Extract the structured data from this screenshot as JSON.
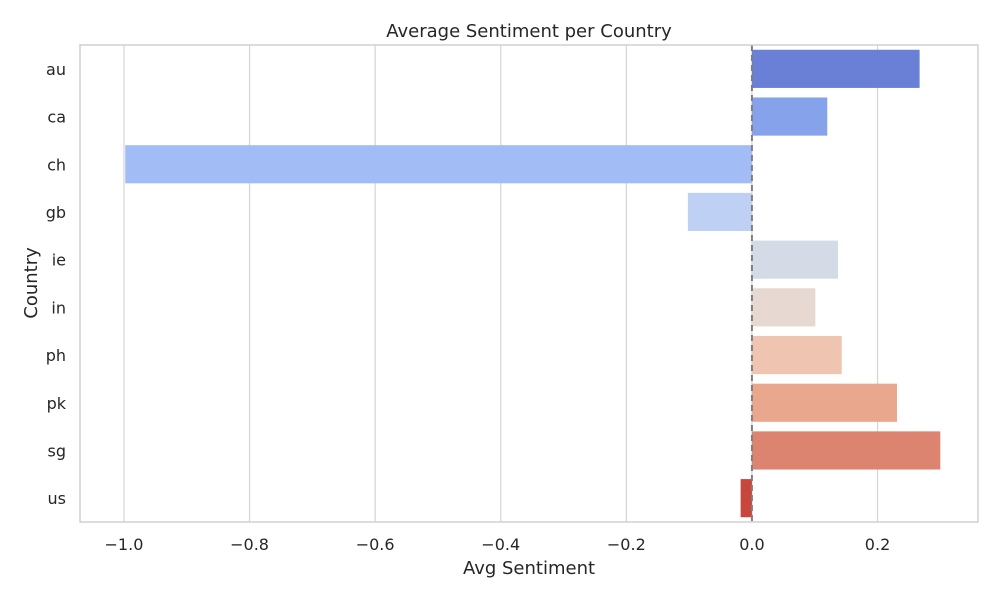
{
  "chart_data": {
    "type": "bar",
    "orientation": "horizontal",
    "title": "Average Sentiment per Country",
    "xlabel": "Avg Sentiment",
    "ylabel": "Country",
    "xlim": [
      -1.07,
      0.36
    ],
    "x_ticks": [
      -1.0,
      -0.8,
      -0.6,
      -0.4,
      -0.2,
      0.0,
      0.2
    ],
    "x_tick_labels": [
      "−1.0",
      "−0.8",
      "−0.6",
      "−0.4",
      "−0.2",
      "0.0",
      "0.2"
    ],
    "grid": "vertical",
    "reference_line": 0.0,
    "categories": [
      "au",
      "ca",
      "ch",
      "gb",
      "ie",
      "in",
      "ph",
      "pk",
      "sg",
      "us"
    ],
    "values": [
      0.267,
      0.12,
      -0.998,
      -0.102,
      0.137,
      0.101,
      0.143,
      0.231,
      0.3,
      -0.018
    ],
    "colors": [
      "#6a7fd6",
      "#86a2ea",
      "#a2bdf6",
      "#bed1f4",
      "#d5dbe6",
      "#e7d8d1",
      "#efc4b0",
      "#e9a78e",
      "#dc846f",
      "#c8473d"
    ]
  }
}
